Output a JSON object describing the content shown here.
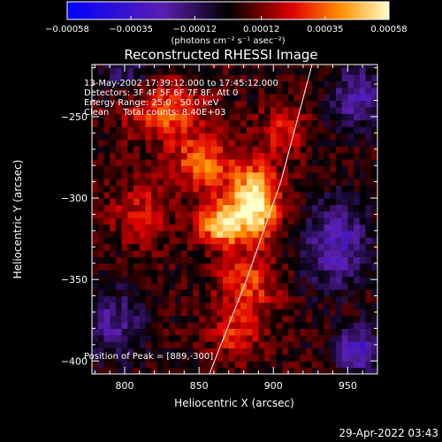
{
  "chart_data": {
    "type": "heatmap",
    "title": "Reconstructed RHESSI Image",
    "xlabel": "Heliocentric X (arcsec)",
    "ylabel": "Heliocentric Y (arcsec)",
    "xlim": [
      778,
      970
    ],
    "ylim": [
      -408,
      -218
    ],
    "x_ticks": [
      800,
      850,
      900,
      950
    ],
    "y_ticks": [
      -250,
      -300,
      -350,
      -400
    ],
    "colorbar": {
      "label": "(photons cm⁻² s⁻¹ asec⁻²)",
      "range": [
        -0.00058,
        0.00058
      ],
      "tick_values": [
        -0.00058,
        -0.00035,
        -0.00012,
        0.00012,
        0.00035,
        0.00058
      ],
      "tick_labels": [
        "-0.00058",
        "-0.00035",
        "-0.00012",
        "0.00012",
        "0.00035",
        "0.00058"
      ]
    },
    "info_lines": [
      "13-May-2002 17:39:12.000 to 17:45:12.000",
      "Detectors: 3F 4F 5F 6F 7F 8F, Att 0",
      "Energy Range: 25.0 - 50.0 keV",
      "Clean     Total counts: 8.40E+03"
    ],
    "peak_label": "Position of Peak = [889,-300]",
    "peak": {
      "x": 889,
      "y": -300
    },
    "limb_line": [
      {
        "x": 857,
        "y": -408
      },
      {
        "x": 882,
        "y": -350
      },
      {
        "x": 905,
        "y": -290
      },
      {
        "x": 926,
        "y": -218
      }
    ],
    "sources": [
      {
        "x": 885,
        "y": -305,
        "amplitude": 0.00058,
        "sx": 12,
        "sy": 16
      },
      {
        "x": 862,
        "y": -318,
        "amplitude": 0.00045,
        "sx": 10,
        "sy": 9
      },
      {
        "x": 850,
        "y": -280,
        "amplitude": 0.00032,
        "sx": 14,
        "sy": 12
      },
      {
        "x": 825,
        "y": -248,
        "amplitude": 0.0003,
        "sx": 18,
        "sy": 12
      },
      {
        "x": 880,
        "y": -355,
        "amplitude": 0.00026,
        "sx": 14,
        "sy": 12
      },
      {
        "x": 872,
        "y": -385,
        "amplitude": 0.00022,
        "sx": 12,
        "sy": 10
      },
      {
        "x": 905,
        "y": -260,
        "amplitude": 0.0002,
        "sx": 12,
        "sy": 10
      },
      {
        "x": 810,
        "y": -310,
        "amplitude": 0.00018,
        "sx": 14,
        "sy": 14
      },
      {
        "x": 940,
        "y": -330,
        "amplitude": -0.0003,
        "sx": 16,
        "sy": 18
      },
      {
        "x": 955,
        "y": -240,
        "amplitude": -0.00025,
        "sx": 14,
        "sy": 14
      },
      {
        "x": 790,
        "y": -380,
        "amplitude": -0.00022,
        "sx": 14,
        "sy": 16
      },
      {
        "x": 800,
        "y": -225,
        "amplitude": -0.00018,
        "sx": 12,
        "sy": 10
      },
      {
        "x": 955,
        "y": -395,
        "amplitude": -0.00035,
        "sx": 10,
        "sy": 10
      }
    ]
  },
  "footer": {
    "timestamp": "29-Apr-2022 03:43"
  }
}
